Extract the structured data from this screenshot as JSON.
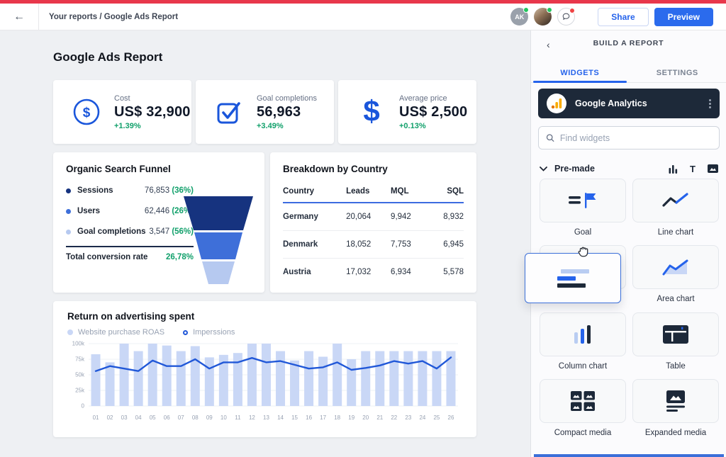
{
  "topbar": {
    "breadcrumb": "Your reports / Google Ads Report",
    "back": "←",
    "avatar_initials": "AK",
    "share_label": "Share",
    "preview_label": "Preview"
  },
  "report": {
    "title": "Google Ads Report",
    "kpis": [
      {
        "label": "Cost",
        "value": "US$ 32,900",
        "delta": "+1.39%",
        "icon": "dollar-circle-icon"
      },
      {
        "label": "Goal completions",
        "value": "56,963",
        "delta": "+3.49%",
        "icon": "checkbox-icon"
      },
      {
        "label": "Average price",
        "value": "US$ 2,500",
        "delta": "+0.13%",
        "icon": "dollar-icon"
      }
    ],
    "funnel": {
      "title": "Organic Search Funnel",
      "rows": [
        {
          "label": "Sessions",
          "value": "76,853",
          "percent": "(36%)",
          "color": "#16337f"
        },
        {
          "label": "Users",
          "value": "62,446",
          "percent": "(26%)",
          "color": "#3e6fd9"
        },
        {
          "label": "Goal completions",
          "value": "3,547",
          "percent": "(56%)",
          "color": "#b6c9f0"
        }
      ],
      "total_label": "Total conversion rate",
      "total_value": "26,78%"
    },
    "country_table": {
      "title": "Breakdown by Country",
      "headers": [
        "Country",
        "Leads",
        "MQL",
        "SQL"
      ],
      "rows": [
        [
          "Germany",
          "20,064",
          "9,942",
          "8,932"
        ],
        [
          "Denmark",
          "18,052",
          "7,753",
          "6,945"
        ],
        [
          "Austria",
          "17,032",
          "6,934",
          "5,578"
        ]
      ]
    }
  },
  "chart_data": {
    "type": "bar+line",
    "title": "Return on advertising spent",
    "x": [
      "01",
      "02",
      "03",
      "04",
      "05",
      "06",
      "07",
      "08",
      "09",
      "10",
      "11",
      "12",
      "13",
      "14",
      "15",
      "16",
      "17",
      "18",
      "19",
      "20",
      "21",
      "22",
      "23",
      "24",
      "25",
      "26"
    ],
    "series": [
      {
        "name": "Website purchase ROAS",
        "render": "bar",
        "color": "#c9d7f6",
        "values": [
          83,
          70,
          100,
          88,
          100,
          97,
          88,
          96,
          78,
          82,
          85,
          100,
          100,
          88,
          73,
          88,
          79,
          100,
          75,
          88,
          88,
          88,
          88,
          88,
          88,
          88
        ]
      },
      {
        "name": "Imperssions",
        "render": "line",
        "color": "#2158d8",
        "values": [
          56,
          64,
          60,
          56,
          73,
          64,
          64,
          75,
          60,
          70,
          70,
          77,
          70,
          72,
          66,
          60,
          62,
          70,
          58,
          61,
          65,
          72,
          68,
          72,
          60,
          78
        ]
      }
    ],
    "ylim": [
      0,
      100
    ],
    "unit": "k",
    "yticks": [
      {
        "v": 100,
        "label": "100k"
      },
      {
        "v": 75,
        "label": "75k"
      },
      {
        "v": 50,
        "label": "50k"
      },
      {
        "v": 25,
        "label": "25k"
      },
      {
        "v": 0,
        "label": "0"
      }
    ],
    "grid": true,
    "legend_position": "top-left"
  },
  "sidebar": {
    "header": "BUILD A REPORT",
    "tabs": [
      {
        "label": "WIDGETS"
      },
      {
        "label": "SETTINGS"
      }
    ],
    "source_name": "Google Analytics",
    "search_placeholder": "Find widgets",
    "section_label": "Pre-made",
    "widgets": [
      {
        "label": "Goal"
      },
      {
        "label": "Line chart"
      },
      {
        "label": "Area chart"
      },
      {
        "label": "Column chart"
      },
      {
        "label": "Table"
      },
      {
        "label": "Compact media"
      },
      {
        "label": "Expanded media"
      }
    ]
  },
  "colors": {
    "accent_blue": "#2563eb",
    "line_blue": "#2158d8",
    "bar_blue": "#c9d7f6",
    "success_green": "#11a06b",
    "top_strip_red": "#e8374b",
    "dark_navy": "#1d2939"
  }
}
